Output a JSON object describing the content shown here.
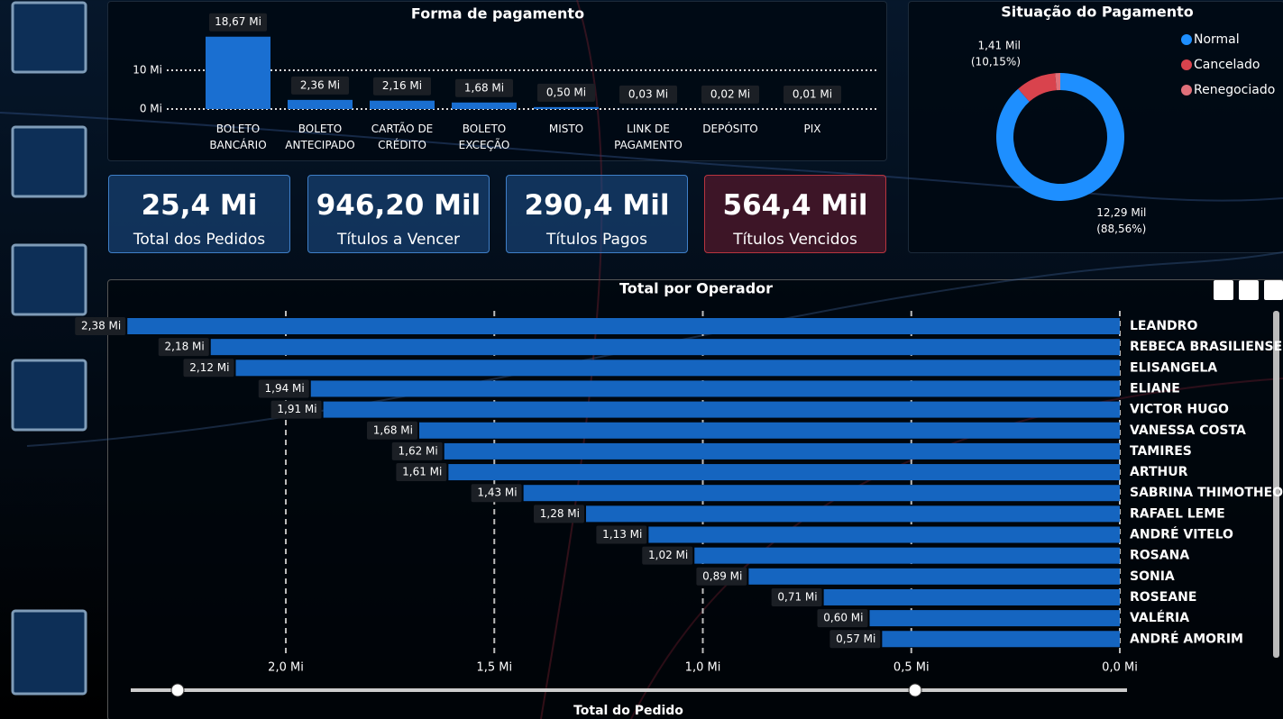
{
  "chart_data": [
    {
      "type": "bar",
      "title": "Forma de pagamento",
      "categories": [
        "BOLETO BANCÁRIO",
        "BOLETO ANTECIPADO",
        "CARTÃO DE CRÉDITO",
        "BOLETO EXCEÇÃO",
        "MISTO",
        "LINK DE PAGAMENTO",
        "DEPÓSITO",
        "PIX"
      ],
      "values": [
        18.67,
        2.36,
        2.16,
        1.68,
        0.5,
        0.03,
        0.02,
        0.01
      ],
      "value_labels": [
        "18,67 Mi",
        "2,36 Mi",
        "2,16 Mi",
        "1,68 Mi",
        "0,50 Mi",
        "0,03 Mi",
        "0,02 Mi",
        "0,01 Mi"
      ],
      "color": "#1a6fd1",
      "ylim": [
        0,
        20
      ],
      "yticks": [
        {
          "value": 0,
          "label": "0 Mi"
        },
        {
          "value": 10,
          "label": "10 Mi"
        }
      ],
      "grid": true
    },
    {
      "type": "donut",
      "title": "Situação do Pagamento",
      "categories": [
        "Normal",
        "Cancelado",
        "Renegociado"
      ],
      "values": [
        12.29,
        1.41,
        0.18
      ],
      "value_labels": [
        "12,29 Mil",
        "1,41 Mil",
        null
      ],
      "percent_labels": [
        "(88,56%)",
        "(10,15%)",
        null
      ],
      "colors": [
        "#1e8fff",
        "#d9434d",
        "#e0707a"
      ],
      "legend": "top-right"
    },
    {
      "type": "hbar",
      "title": "Total por Operador",
      "x_label": "Total do Pedido",
      "categories": [
        "LEANDRO",
        "REBECA BRASILIENSE",
        "ELISANGELA",
        "ELIANE",
        "VICTOR HUGO",
        "VANESSA COSTA",
        "TAMIRES",
        "ARTHUR",
        "SABRINA THIMOTHEO",
        "RAFAEL LEME",
        "ANDRÉ VITELO",
        "ROSANA",
        "SONIA",
        "ROSEANE",
        "VALÉRIA",
        "ANDRÉ AMORIM"
      ],
      "values": [
        2.38,
        2.18,
        2.12,
        1.94,
        1.91,
        1.68,
        1.62,
        1.61,
        1.43,
        1.28,
        1.13,
        1.02,
        0.89,
        0.71,
        0.6,
        0.57
      ],
      "value_labels": [
        "2,38 Mi",
        "2,18 Mi",
        "2,12 Mi",
        "1,94 Mi",
        "1,91 Mi",
        "1,68 Mi",
        "1,62 Mi",
        "1,61 Mi",
        "1,43 Mi",
        "1,28 Mi",
        "1,13 Mi",
        "1,02 Mi",
        "0,89 Mi",
        "0,71 Mi",
        "0,60 Mi",
        "0,57 Mi"
      ],
      "color": "#1565c0",
      "xlim": [
        2.4,
        0
      ],
      "xticks": [
        {
          "value": 2.0,
          "label": "2,0 Mi"
        },
        {
          "value": 1.5,
          "label": "1,5 Mi"
        },
        {
          "value": 1.0,
          "label": "1,0 Mi"
        },
        {
          "value": 0.5,
          "label": "0,5 Mi"
        },
        {
          "value": 0,
          "label": "0,0 Mi"
        }
      ],
      "grid": true
    }
  ],
  "cards": [
    {
      "value": "25,4 Mi",
      "label": "Total dos Pedidos"
    },
    {
      "value": "946,20 Mil",
      "label": "Títulos a Vencer"
    },
    {
      "value": "290,4 Mil",
      "label": "Títulos Pagos"
    },
    {
      "value": "564,4 Mil",
      "label": "Títulos Vencidos"
    }
  ]
}
